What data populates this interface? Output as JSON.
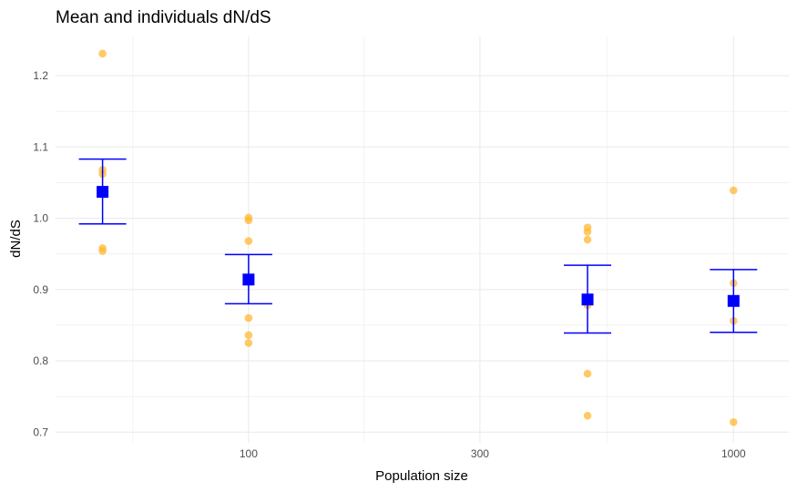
{
  "chart_data": {
    "type": "scatter",
    "title": "Mean and individuals dN/dS",
    "xlabel": "Population size",
    "ylabel": "dN/dS",
    "x_scale": "log10",
    "xlim": [
      40,
      1300
    ],
    "ylim": [
      0.685,
      1.255
    ],
    "x_ticks": [
      100,
      300,
      1000
    ],
    "x_tick_labels": [
      "100",
      "300",
      "1000"
    ],
    "y_ticks": [
      0.7,
      0.8,
      0.9,
      1.0,
      1.1,
      1.2
    ],
    "y_tick_labels": [
      "0.7",
      "0.8",
      "0.9",
      "1.0",
      "1.1",
      "1.2"
    ],
    "grid": true,
    "colors": {
      "individuals": "#FFB833",
      "mean": "#0000FF",
      "grid": "#EBEBEB"
    },
    "series": [
      {
        "role": "individuals",
        "points": [
          {
            "x": 50,
            "y": 1.231
          },
          {
            "x": 50,
            "y": 1.068
          },
          {
            "x": 50,
            "y": 1.062
          },
          {
            "x": 50,
            "y": 0.958
          },
          {
            "x": 50,
            "y": 0.954
          },
          {
            "x": 100,
            "y": 1.001
          },
          {
            "x": 100,
            "y": 0.997
          },
          {
            "x": 100,
            "y": 0.968
          },
          {
            "x": 100,
            "y": 0.86
          },
          {
            "x": 100,
            "y": 0.836
          },
          {
            "x": 100,
            "y": 0.825
          },
          {
            "x": 500,
            "y": 0.987
          },
          {
            "x": 500,
            "y": 0.981
          },
          {
            "x": 500,
            "y": 0.97
          },
          {
            "x": 500,
            "y": 0.878
          },
          {
            "x": 500,
            "y": 0.782
          },
          {
            "x": 500,
            "y": 0.723
          },
          {
            "x": 1000,
            "y": 1.039
          },
          {
            "x": 1000,
            "y": 0.909
          },
          {
            "x": 1000,
            "y": 0.856
          },
          {
            "x": 1000,
            "y": 0.714
          }
        ]
      },
      {
        "role": "mean",
        "points": [
          {
            "x": 50,
            "y": 1.037,
            "ymin": 0.992,
            "ymax": 1.083
          },
          {
            "x": 100,
            "y": 0.914,
            "ymin": 0.88,
            "ymax": 0.949
          },
          {
            "x": 500,
            "y": 0.886,
            "ymin": 0.839,
            "ymax": 0.934
          },
          {
            "x": 1000,
            "y": 0.884,
            "ymin": 0.84,
            "ymax": 0.928
          }
        ]
      }
    ]
  }
}
